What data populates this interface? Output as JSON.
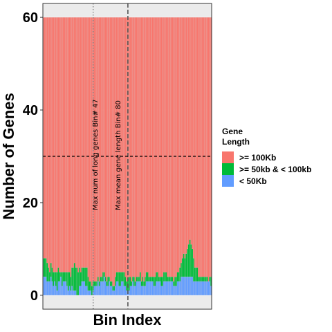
{
  "chart_data": {
    "type": "bar",
    "stacked": true,
    "xlabel": "Bin Index",
    "ylabel": "Number of Genes",
    "ylim": [
      -3,
      63
    ],
    "yticks": [
      0,
      20,
      40,
      60
    ],
    "n_bins": 136,
    "total_per_bin": 60,
    "series": [
      {
        "name": "< 50Kb",
        "color": "#619CFF",
        "values": [
          4,
          4,
          4,
          3,
          3,
          3,
          4,
          3,
          2,
          3,
          2,
          1,
          3,
          3,
          4,
          2,
          3,
          3,
          3,
          2,
          1,
          2,
          1,
          2,
          1,
          1,
          1,
          0,
          0,
          2,
          2,
          3,
          3,
          3,
          2,
          2,
          1,
          1,
          1,
          0,
          1,
          2,
          2,
          2,
          3,
          2,
          3,
          3,
          3,
          4,
          3,
          2,
          2,
          3,
          2,
          2,
          1,
          1,
          2,
          3,
          3,
          2,
          2,
          3,
          3,
          2,
          2,
          1,
          1,
          1,
          2,
          2,
          3,
          2,
          2,
          3,
          3,
          3,
          3,
          2,
          2,
          2,
          2,
          3,
          3,
          3,
          3,
          3,
          3,
          2,
          2,
          3,
          3,
          3,
          3,
          2,
          2,
          3,
          3,
          3,
          3,
          3,
          3,
          3,
          3,
          2,
          2,
          2,
          3,
          3,
          3,
          4,
          4,
          4,
          4,
          4,
          4,
          4,
          4,
          4,
          4,
          3,
          3,
          3,
          3,
          3,
          3,
          3,
          3,
          3,
          3,
          3,
          3,
          3,
          3,
          2
        ]
      },
      {
        "name": ">= 50kb & < 100kb",
        "color": "#00BA38",
        "values": [
          4,
          4,
          4,
          4,
          3,
          2,
          3,
          3,
          3,
          2,
          3,
          4,
          3,
          2,
          1,
          3,
          2,
          2,
          2,
          3,
          4,
          3,
          3,
          4,
          5,
          6,
          5,
          6,
          5,
          4,
          3,
          3,
          3,
          3,
          4,
          4,
          3,
          2,
          2,
          2,
          2,
          1,
          1,
          1,
          1,
          1,
          1,
          1,
          2,
          1,
          1,
          1,
          2,
          1,
          1,
          1,
          1,
          1,
          2,
          2,
          2,
          3,
          3,
          2,
          2,
          3,
          2,
          2,
          2,
          3,
          2,
          1,
          1,
          2,
          1,
          1,
          1,
          1,
          2,
          1,
          2,
          1,
          2,
          2,
          2,
          1,
          1,
          1,
          1,
          2,
          2,
          2,
          2,
          1,
          1,
          2,
          2,
          2,
          2,
          2,
          1,
          1,
          1,
          1,
          1,
          1,
          2,
          2,
          2,
          2,
          3,
          3,
          4,
          5,
          4,
          5,
          6,
          7,
          8,
          7,
          6,
          5,
          3,
          3,
          3,
          1,
          1,
          1,
          1,
          1,
          1,
          1,
          1,
          0,
          1,
          2
        ]
      },
      {
        "name": ">= 100Kb",
        "color": "#F8766D",
        "values_rule": "remainder to 60"
      }
    ],
    "vlines": [
      {
        "x": 40,
        "style": "dotted",
        "label": "Max num of long genes Bin# 47"
      },
      {
        "x": 68,
        "style": "dashed",
        "label": "Max mean gene length Bin# 80"
      }
    ],
    "hlines": [
      {
        "y": 30,
        "style": "dashed"
      }
    ],
    "legend": {
      "title_line1": "Gene",
      "title_line2": "Length",
      "placement": "right",
      "entries": [
        {
          "label": ">= 100Kb",
          "color": "#F8766D"
        },
        {
          "label": ">= 50kb & < 100kb",
          "color": "#00BA38"
        },
        {
          "label": "< 50Kb",
          "color": "#619CFF"
        }
      ]
    },
    "grid": true,
    "background": "#EBEBEB"
  }
}
